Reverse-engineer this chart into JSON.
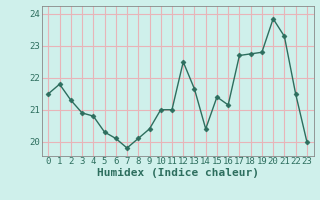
{
  "x": [
    0,
    1,
    2,
    3,
    4,
    5,
    6,
    7,
    8,
    9,
    10,
    11,
    12,
    13,
    14,
    15,
    16,
    17,
    18,
    19,
    20,
    21,
    22,
    23
  ],
  "y": [
    21.5,
    21.8,
    21.3,
    20.9,
    20.8,
    20.3,
    20.1,
    19.8,
    20.1,
    20.4,
    21.0,
    21.0,
    22.5,
    21.65,
    20.4,
    21.4,
    21.15,
    22.7,
    22.75,
    22.8,
    23.85,
    23.3,
    21.5,
    20.0
  ],
  "line_color": "#2d6e5e",
  "marker": "D",
  "marker_size": 2.5,
  "bg_color": "#cff0eb",
  "grid_color": "#e8b4b8",
  "xlabel": "Humidex (Indice chaleur)",
  "ylim": [
    19.55,
    24.25
  ],
  "yticks": [
    20,
    21,
    22,
    23,
    24
  ],
  "xtick_labels": [
    "0",
    "1",
    "2",
    "3",
    "4",
    "5",
    "6",
    "7",
    "8",
    "9",
    "10",
    "11",
    "12",
    "13",
    "14",
    "15",
    "16",
    "17",
    "18",
    "19",
    "20",
    "21",
    "22",
    "23"
  ],
  "xlabel_fontsize": 8,
  "tick_fontsize": 6.5,
  "line_width": 1.0
}
